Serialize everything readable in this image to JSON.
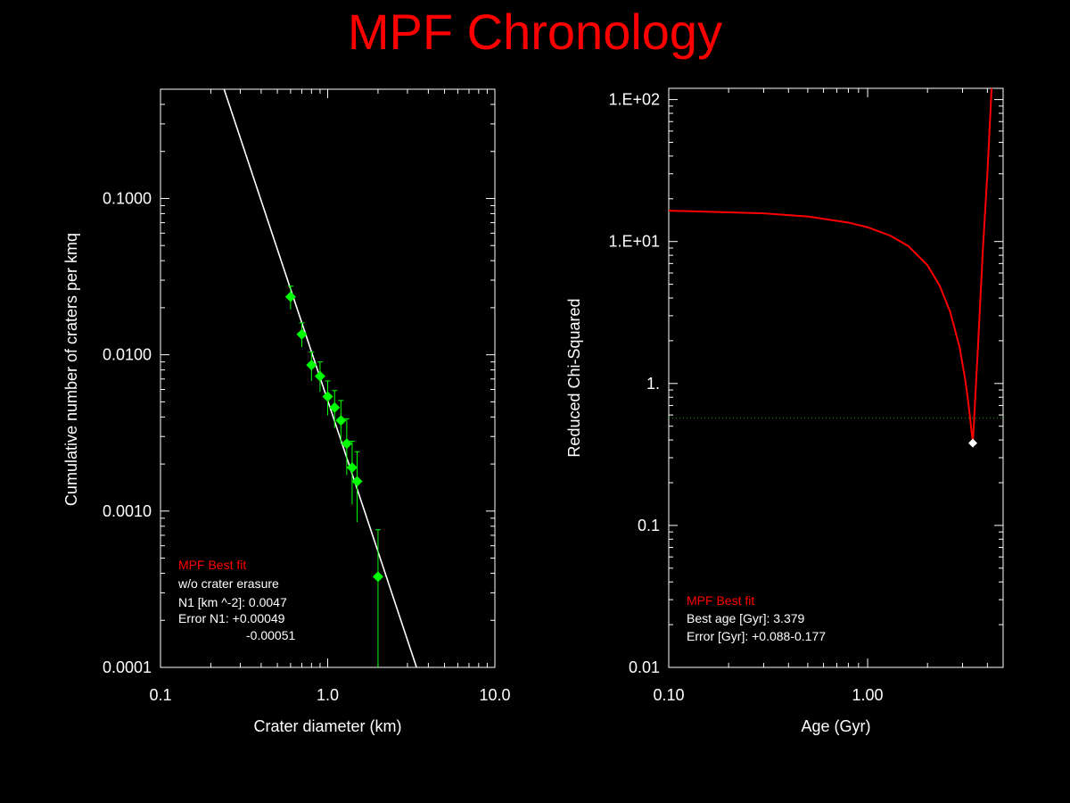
{
  "title": "MPF Chronology",
  "chart_data": [
    {
      "type": "scatter",
      "xlabel": "Crater diameter (km)",
      "ylabel": "Cumulative number of craters per kmq",
      "xscale": "log",
      "yscale": "log",
      "xlim": [
        0.1,
        10.0
      ],
      "ylim": [
        0.0001,
        0.5
      ],
      "xticks": [
        "0.1",
        "1.0",
        "10.0"
      ],
      "xtick_values": [
        0.1,
        1.0,
        10.0
      ],
      "yticks": [
        "0.0001",
        "0.0010",
        "0.0100",
        "0.1000"
      ],
      "ytick_values": [
        0.0001,
        0.001,
        0.01,
        0.1
      ],
      "points": [
        {
          "x": 0.6,
          "y": 0.0235,
          "ylo": 0.0195,
          "yhi": 0.0275
        },
        {
          "x": 0.7,
          "y": 0.0135,
          "ylo": 0.0112,
          "yhi": 0.016
        },
        {
          "x": 0.8,
          "y": 0.0086,
          "ylo": 0.0068,
          "yhi": 0.0104
        },
        {
          "x": 0.9,
          "y": 0.0073,
          "ylo": 0.0058,
          "yhi": 0.009
        },
        {
          "x": 1.0,
          "y": 0.0054,
          "ylo": 0.0041,
          "yhi": 0.0068
        },
        {
          "x": 1.1,
          "y": 0.0046,
          "ylo": 0.0034,
          "yhi": 0.0059
        },
        {
          "x": 1.2,
          "y": 0.0038,
          "ylo": 0.0027,
          "yhi": 0.0051
        },
        {
          "x": 1.3,
          "y": 0.0027,
          "ylo": 0.0017,
          "yhi": 0.0039
        },
        {
          "x": 1.4,
          "y": 0.0019,
          "ylo": 0.0011,
          "yhi": 0.0028
        },
        {
          "x": 1.5,
          "y": 0.00155,
          "ylo": 0.00085,
          "yhi": 0.0024
        },
        {
          "x": 2.0,
          "y": 0.00038,
          "ylo": 0.0001,
          "yhi": 0.00076
        }
      ],
      "fit_line": {
        "x": [
          0.24,
          3.4
        ],
        "y": [
          0.5,
          0.0001
        ]
      },
      "point_color": "#00ff00",
      "line_color": "#ffffff",
      "annotation": {
        "header": "MPF Best fit",
        "lines": [
          "w/o crater erasure",
          "N1 [km ^-2]: 0.0047",
          "Error N1: +0.00049",
          "-0.00051"
        ]
      }
    },
    {
      "type": "line",
      "xlabel": "Age (Gyr)",
      "ylabel": "Reduced Chi-Squared",
      "xscale": "log",
      "yscale": "log",
      "xlim": [
        0.1,
        4.8
      ],
      "ylim": [
        0.01,
        120
      ],
      "xticks": [
        "0.10",
        "1.00"
      ],
      "xtick_values": [
        0.1,
        1.0
      ],
      "yticks": [
        "0.01",
        "0.1",
        "1.",
        "1.E+01",
        "1.E+02"
      ],
      "ytick_values": [
        0.01,
        0.1,
        1,
        10,
        100
      ],
      "curve": {
        "x": [
          0.1,
          0.3,
          0.5,
          0.8,
          1.0,
          1.3,
          1.6,
          2.0,
          2.3,
          2.6,
          2.9,
          3.1,
          3.2,
          3.3,
          3.379,
          3.45,
          3.6,
          3.8,
          4.0,
          4.2
        ],
        "y": [
          16.5,
          15.8,
          15.0,
          13.6,
          12.6,
          11.0,
          9.3,
          6.8,
          4.9,
          3.2,
          1.8,
          1.05,
          0.75,
          0.52,
          0.38,
          0.65,
          2.0,
          9.0,
          30.0,
          120.0
        ]
      },
      "reference_level": 0.57,
      "best_point": {
        "x": 3.379,
        "y": 0.38
      },
      "curve_color": "#ff0000",
      "reference_color": "#00aa00",
      "point_color": "#ffffff",
      "annotation": {
        "header": "MPF Best fit",
        "lines": [
          "Best age [Gyr]: 3.379",
          "Error [Gyr]: +0.088-0.177"
        ]
      }
    }
  ]
}
